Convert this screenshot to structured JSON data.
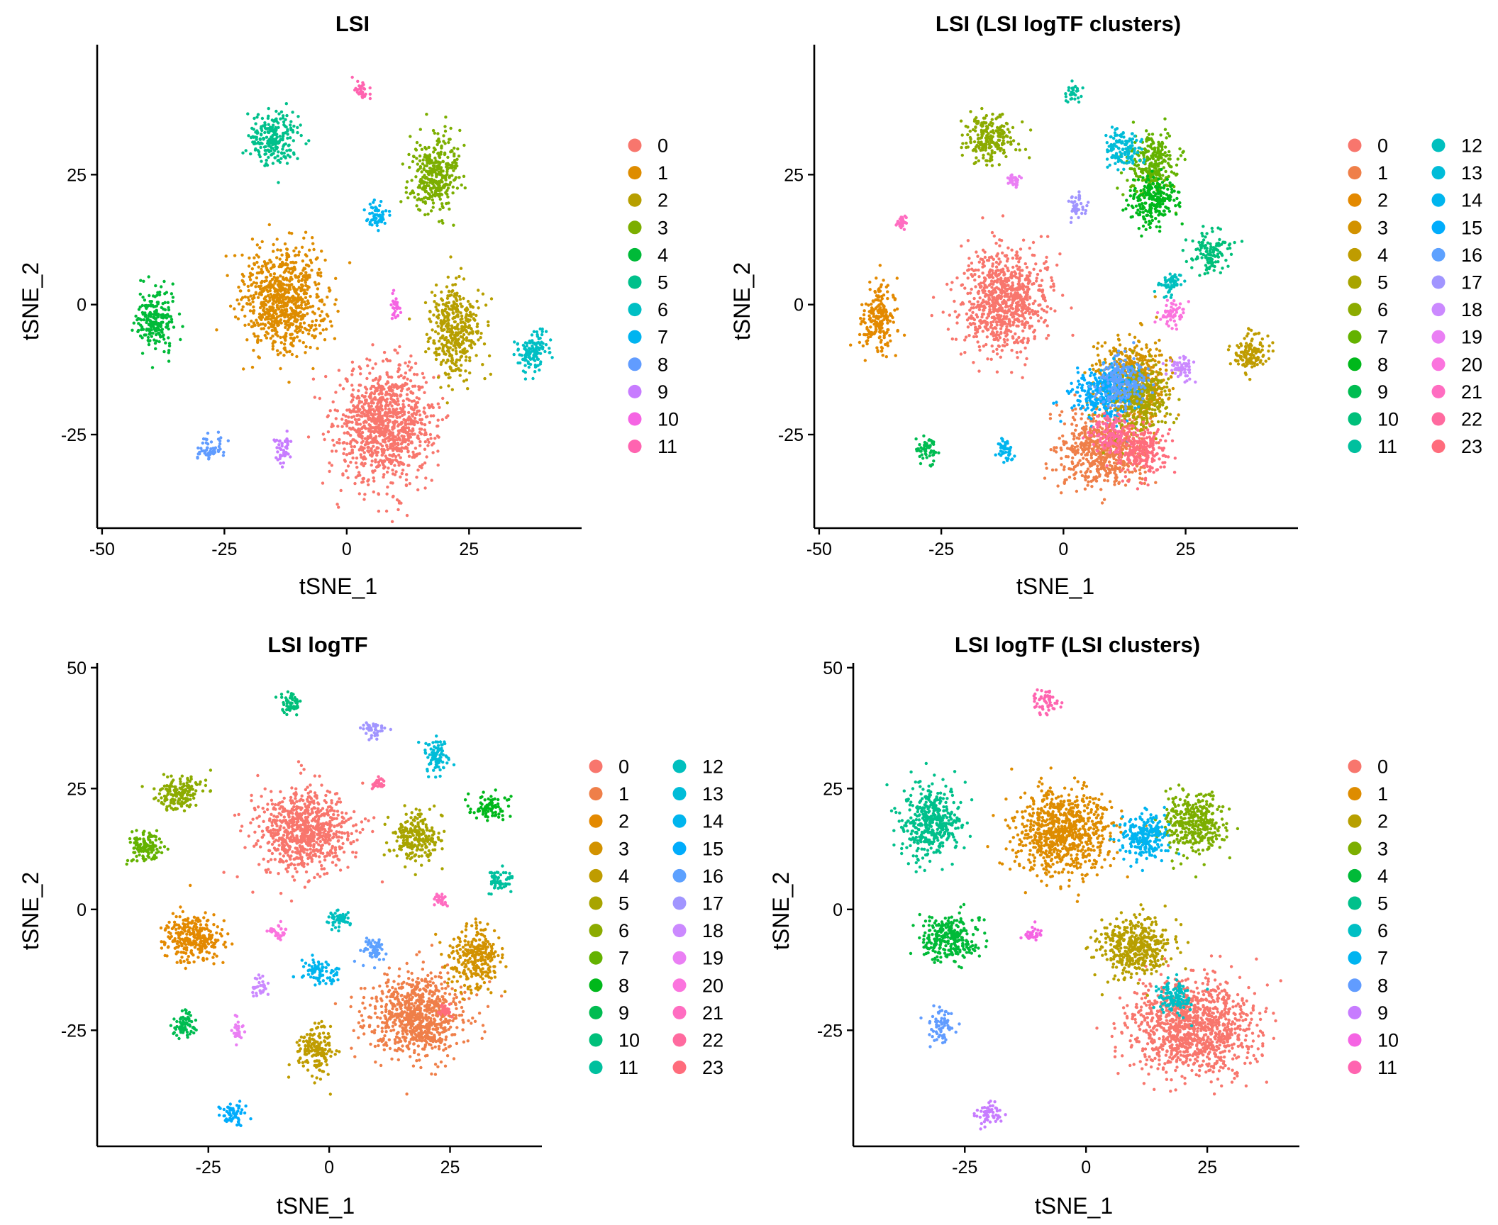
{
  "chart_data": [
    {
      "type": "scatter",
      "title": "LSI",
      "xlabel": "tSNE_1",
      "ylabel": "tSNE_2",
      "xlim": [
        -51,
        48
      ],
      "ylim": [
        -43,
        50
      ],
      "xticks": [
        -50,
        -25,
        0,
        25
      ],
      "yticks": [
        -25,
        0,
        25
      ],
      "grid": false,
      "legend": {
        "placement": "right",
        "columns": 1,
        "labels": [
          "0",
          "1",
          "2",
          "3",
          "4",
          "5",
          "6",
          "7",
          "8",
          "9",
          "10",
          "11"
        ]
      },
      "palette": [
        "#F8766D",
        "#DE8C00",
        "#B79F00",
        "#7CAE00",
        "#00BA38",
        "#00C08B",
        "#00BFC4",
        "#00B4F0",
        "#619CFF",
        "#C77CFF",
        "#F564E3",
        "#FF64B0"
      ],
      "clusters": [
        {
          "cluster": "0",
          "x": 8,
          "y": -23,
          "sx": 8,
          "sy": 9
        },
        {
          "cluster": "1",
          "x": -13,
          "y": 1,
          "sx": 7,
          "sy": 8
        },
        {
          "cluster": "2",
          "x": 22,
          "y": -5,
          "sx": 4,
          "sy": 7
        },
        {
          "cluster": "3",
          "x": 18,
          "y": 25,
          "sx": 4,
          "sy": 6
        },
        {
          "cluster": "4",
          "x": -39,
          "y": -3,
          "sx": 3,
          "sy": 5
        },
        {
          "cluster": "5",
          "x": -15,
          "y": 32,
          "sx": 4,
          "sy": 4
        },
        {
          "cluster": "6",
          "x": 38,
          "y": -9,
          "sx": 3,
          "sy": 3
        },
        {
          "cluster": "7",
          "x": 6,
          "y": 17,
          "sx": 2,
          "sy": 2
        },
        {
          "cluster": "8",
          "x": -28,
          "y": -28,
          "sx": 2,
          "sy": 2
        },
        {
          "cluster": "9",
          "x": -13,
          "y": -28,
          "sx": 1.5,
          "sy": 2
        },
        {
          "cluster": "10",
          "x": 10,
          "y": 0,
          "sx": 1,
          "sy": 2
        },
        {
          "cluster": "11",
          "x": 3,
          "y": 41,
          "sx": 1.5,
          "sy": 1.5
        }
      ]
    },
    {
      "type": "scatter",
      "title": "LSI (LSI logTF clusters)",
      "xlabel": "tSNE_1",
      "ylabel": "tSNE_2",
      "xlim": [
        -51,
        48
      ],
      "ylim": [
        -43,
        50
      ],
      "xticks": [
        -50,
        -25,
        0,
        25
      ],
      "yticks": [
        -25,
        0,
        25
      ],
      "grid": false,
      "legend": {
        "placement": "right",
        "columns": 2,
        "labels": [
          "0",
          "1",
          "2",
          "3",
          "4",
          "5",
          "6",
          "7",
          "8",
          "9",
          "10",
          "11",
          "12",
          "13",
          "14",
          "15",
          "16",
          "17",
          "18",
          "19",
          "20",
          "21",
          "22",
          "23"
        ]
      },
      "palette": [
        "#F8766D",
        "#EF7F49",
        "#E38900",
        "#D29200",
        "#BF9C00",
        "#A8A400",
        "#8CAB00",
        "#64B200",
        "#00B81B",
        "#00BC51",
        "#00BF7A",
        "#00C09E",
        "#00BFBE",
        "#00BCD8",
        "#00B5EE",
        "#00ACFC",
        "#5DA1FF",
        "#A195FF",
        "#CB89FF",
        "#EA7FF4",
        "#FB74DE",
        "#FF6DC1",
        "#FF6A9F",
        "#FF6C7C"
      ],
      "clusters": [
        {
          "cluster": "0",
          "x": -12,
          "y": 1,
          "sx": 7,
          "sy": 8
        },
        {
          "cluster": "1",
          "x": 8,
          "y": -28,
          "sx": 7,
          "sy": 6
        },
        {
          "cluster": "2",
          "x": -38,
          "y": -3,
          "sx": 3,
          "sy": 5
        },
        {
          "cluster": "3",
          "x": 14,
          "y": -14,
          "sx": 6,
          "sy": 6
        },
        {
          "cluster": "4",
          "x": 38,
          "y": -9,
          "sx": 3,
          "sy": 3
        },
        {
          "cluster": "5",
          "x": 15,
          "y": -18,
          "sx": 5,
          "sy": 5
        },
        {
          "cluster": "6",
          "x": -15,
          "y": 32,
          "sx": 4,
          "sy": 4
        },
        {
          "cluster": "7",
          "x": 18,
          "y": 27,
          "sx": 4,
          "sy": 5
        },
        {
          "cluster": "8",
          "x": 18,
          "y": 20,
          "sx": 4,
          "sy": 4
        },
        {
          "cluster": "9",
          "x": -28,
          "y": -28,
          "sx": 2,
          "sy": 2
        },
        {
          "cluster": "10",
          "x": 30,
          "y": 10,
          "sx": 3,
          "sy": 3
        },
        {
          "cluster": "11",
          "x": 2,
          "y": 41,
          "sx": 1.5,
          "sy": 1.5
        },
        {
          "cluster": "12",
          "x": 22,
          "y": 4,
          "sx": 2,
          "sy": 2
        },
        {
          "cluster": "13",
          "x": 12,
          "y": 30,
          "sx": 3,
          "sy": 3
        },
        {
          "cluster": "14",
          "x": -12,
          "y": -28,
          "sx": 1.5,
          "sy": 2
        },
        {
          "cluster": "15",
          "x": 8,
          "y": -17,
          "sx": 5,
          "sy": 4
        },
        {
          "cluster": "16",
          "x": 12,
          "y": -15,
          "sx": 4,
          "sy": 4
        },
        {
          "cluster": "17",
          "x": 3,
          "y": 19,
          "sx": 1.5,
          "sy": 2
        },
        {
          "cluster": "18",
          "x": 24,
          "y": -12,
          "sx": 2,
          "sy": 2
        },
        {
          "cluster": "19",
          "x": -10,
          "y": 24,
          "sx": 1,
          "sy": 1
        },
        {
          "cluster": "20",
          "x": 22,
          "y": -2,
          "sx": 2,
          "sy": 2
        },
        {
          "cluster": "21",
          "x": -33,
          "y": 16,
          "sx": 1,
          "sy": 1
        },
        {
          "cluster": "22",
          "x": 10,
          "y": -25,
          "sx": 3,
          "sy": 3
        },
        {
          "cluster": "23",
          "x": 16,
          "y": -28,
          "sx": 4,
          "sy": 4
        }
      ]
    },
    {
      "type": "scatter",
      "title": "LSI logTF",
      "xlabel": "tSNE_1",
      "ylabel": "tSNE_2",
      "xlim": [
        -48,
        44
      ],
      "ylim": [
        -49,
        51
      ],
      "xticks": [
        -25,
        0,
        25
      ],
      "yticks": [
        -25,
        0,
        25,
        50
      ],
      "grid": false,
      "legend": {
        "placement": "right",
        "columns": 2,
        "labels": [
          "0",
          "1",
          "2",
          "3",
          "4",
          "5",
          "6",
          "7",
          "8",
          "9",
          "10",
          "11",
          "12",
          "13",
          "14",
          "15",
          "16",
          "17",
          "18",
          "19",
          "20",
          "21",
          "22",
          "23"
        ]
      },
      "palette": [
        "#F8766D",
        "#EF7F49",
        "#E38900",
        "#D29200",
        "#BF9C00",
        "#A8A400",
        "#8CAB00",
        "#64B200",
        "#00B81B",
        "#00BC51",
        "#00BF7A",
        "#00C09E",
        "#00BFBE",
        "#00BCD8",
        "#00B5EE",
        "#00ACFC",
        "#5DA1FF",
        "#A195FF",
        "#CB89FF",
        "#EA7FF4",
        "#FB74DE",
        "#FF6DC1",
        "#FF6A9F",
        "#FF6C7C"
      ],
      "clusters": [
        {
          "cluster": "0",
          "x": -5,
          "y": 16,
          "sx": 8,
          "sy": 7
        },
        {
          "cluster": "1",
          "x": 18,
          "y": -22,
          "sx": 8,
          "sy": 7
        },
        {
          "cluster": "2",
          "x": -28,
          "y": -6,
          "sx": 5,
          "sy": 4
        },
        {
          "cluster": "3",
          "x": 30,
          "y": -10,
          "sx": 4,
          "sy": 5
        },
        {
          "cluster": "4",
          "x": -3,
          "y": -29,
          "sx": 3,
          "sy": 4
        },
        {
          "cluster": "5",
          "x": 18,
          "y": 15,
          "sx": 4,
          "sy": 4
        },
        {
          "cluster": "6",
          "x": -31,
          "y": 24,
          "sx": 4,
          "sy": 3
        },
        {
          "cluster": "7",
          "x": -38,
          "y": 13,
          "sx": 3,
          "sy": 3
        },
        {
          "cluster": "8",
          "x": 33,
          "y": 21,
          "sx": 3,
          "sy": 2
        },
        {
          "cluster": "9",
          "x": -30,
          "y": -24,
          "sx": 2,
          "sy": 2.5
        },
        {
          "cluster": "10",
          "x": -8,
          "y": 43,
          "sx": 2,
          "sy": 2
        },
        {
          "cluster": "11",
          "x": 35,
          "y": 6,
          "sx": 2,
          "sy": 2
        },
        {
          "cluster": "12",
          "x": 2,
          "y": -2,
          "sx": 2,
          "sy": 2
        },
        {
          "cluster": "13",
          "x": 22,
          "y": 32,
          "sx": 2,
          "sy": 3
        },
        {
          "cluster": "14",
          "x": -2,
          "y": -13,
          "sx": 3,
          "sy": 2
        },
        {
          "cluster": "15",
          "x": -20,
          "y": -42,
          "sx": 2,
          "sy": 2
        },
        {
          "cluster": "16",
          "x": 9,
          "y": -8,
          "sx": 2,
          "sy": 2
        },
        {
          "cluster": "17",
          "x": 9,
          "y": 37,
          "sx": 2,
          "sy": 1.5
        },
        {
          "cluster": "18",
          "x": -14,
          "y": -16,
          "sx": 1.5,
          "sy": 1.5
        },
        {
          "cluster": "19",
          "x": -19,
          "y": -25,
          "sx": 1,
          "sy": 2
        },
        {
          "cluster": "20",
          "x": -11,
          "y": -5,
          "sx": 1.5,
          "sy": 1.5
        },
        {
          "cluster": "21",
          "x": 23,
          "y": 2,
          "sx": 1,
          "sy": 1
        },
        {
          "cluster": "22",
          "x": 10,
          "y": 26,
          "sx": 1,
          "sy": 1
        },
        {
          "cluster": "23",
          "x": 24,
          "y": -21,
          "sx": 1,
          "sy": 1
        }
      ]
    },
    {
      "type": "scatter",
      "title": "LSI logTF (LSI clusters)",
      "xlabel": "tSNE_1",
      "ylabel": "tSNE_2",
      "xlim": [
        -48,
        44
      ],
      "ylim": [
        -49,
        51
      ],
      "xticks": [
        -25,
        0,
        25
      ],
      "yticks": [
        -25,
        0,
        25,
        50
      ],
      "grid": false,
      "legend": {
        "placement": "right",
        "columns": 1,
        "labels": [
          "0",
          "1",
          "2",
          "3",
          "4",
          "5",
          "6",
          "7",
          "8",
          "9",
          "10",
          "11"
        ]
      },
      "palette": [
        "#F8766D",
        "#DE8C00",
        "#B79F00",
        "#7CAE00",
        "#00BA38",
        "#00C08B",
        "#00BFC4",
        "#00B4F0",
        "#619CFF",
        "#C77CFF",
        "#F564E3",
        "#FF64B0"
      ],
      "clusters": [
        {
          "cluster": "0",
          "x": 22,
          "y": -24,
          "sx": 10,
          "sy": 8
        },
        {
          "cluster": "1",
          "x": -5,
          "y": 16,
          "sx": 8,
          "sy": 7
        },
        {
          "cluster": "2",
          "x": 10,
          "y": -8,
          "sx": 6,
          "sy": 5
        },
        {
          "cluster": "3",
          "x": 22,
          "y": 18,
          "sx": 5,
          "sy": 5
        },
        {
          "cluster": "4",
          "x": -28,
          "y": -6,
          "sx": 5,
          "sy": 4
        },
        {
          "cluster": "5",
          "x": -32,
          "y": 18,
          "sx": 5,
          "sy": 6
        },
        {
          "cluster": "6",
          "x": 18,
          "y": -18,
          "sx": 3,
          "sy": 3
        },
        {
          "cluster": "7",
          "x": 12,
          "y": 15,
          "sx": 4,
          "sy": 4
        },
        {
          "cluster": "8",
          "x": -30,
          "y": -24,
          "sx": 2,
          "sy": 2.5
        },
        {
          "cluster": "9",
          "x": -20,
          "y": -42,
          "sx": 2,
          "sy": 2
        },
        {
          "cluster": "10",
          "x": -11,
          "y": -5,
          "sx": 1.5,
          "sy": 1.5
        },
        {
          "cluster": "11",
          "x": -8,
          "y": 43,
          "sx": 2,
          "sy": 2
        }
      ]
    }
  ]
}
